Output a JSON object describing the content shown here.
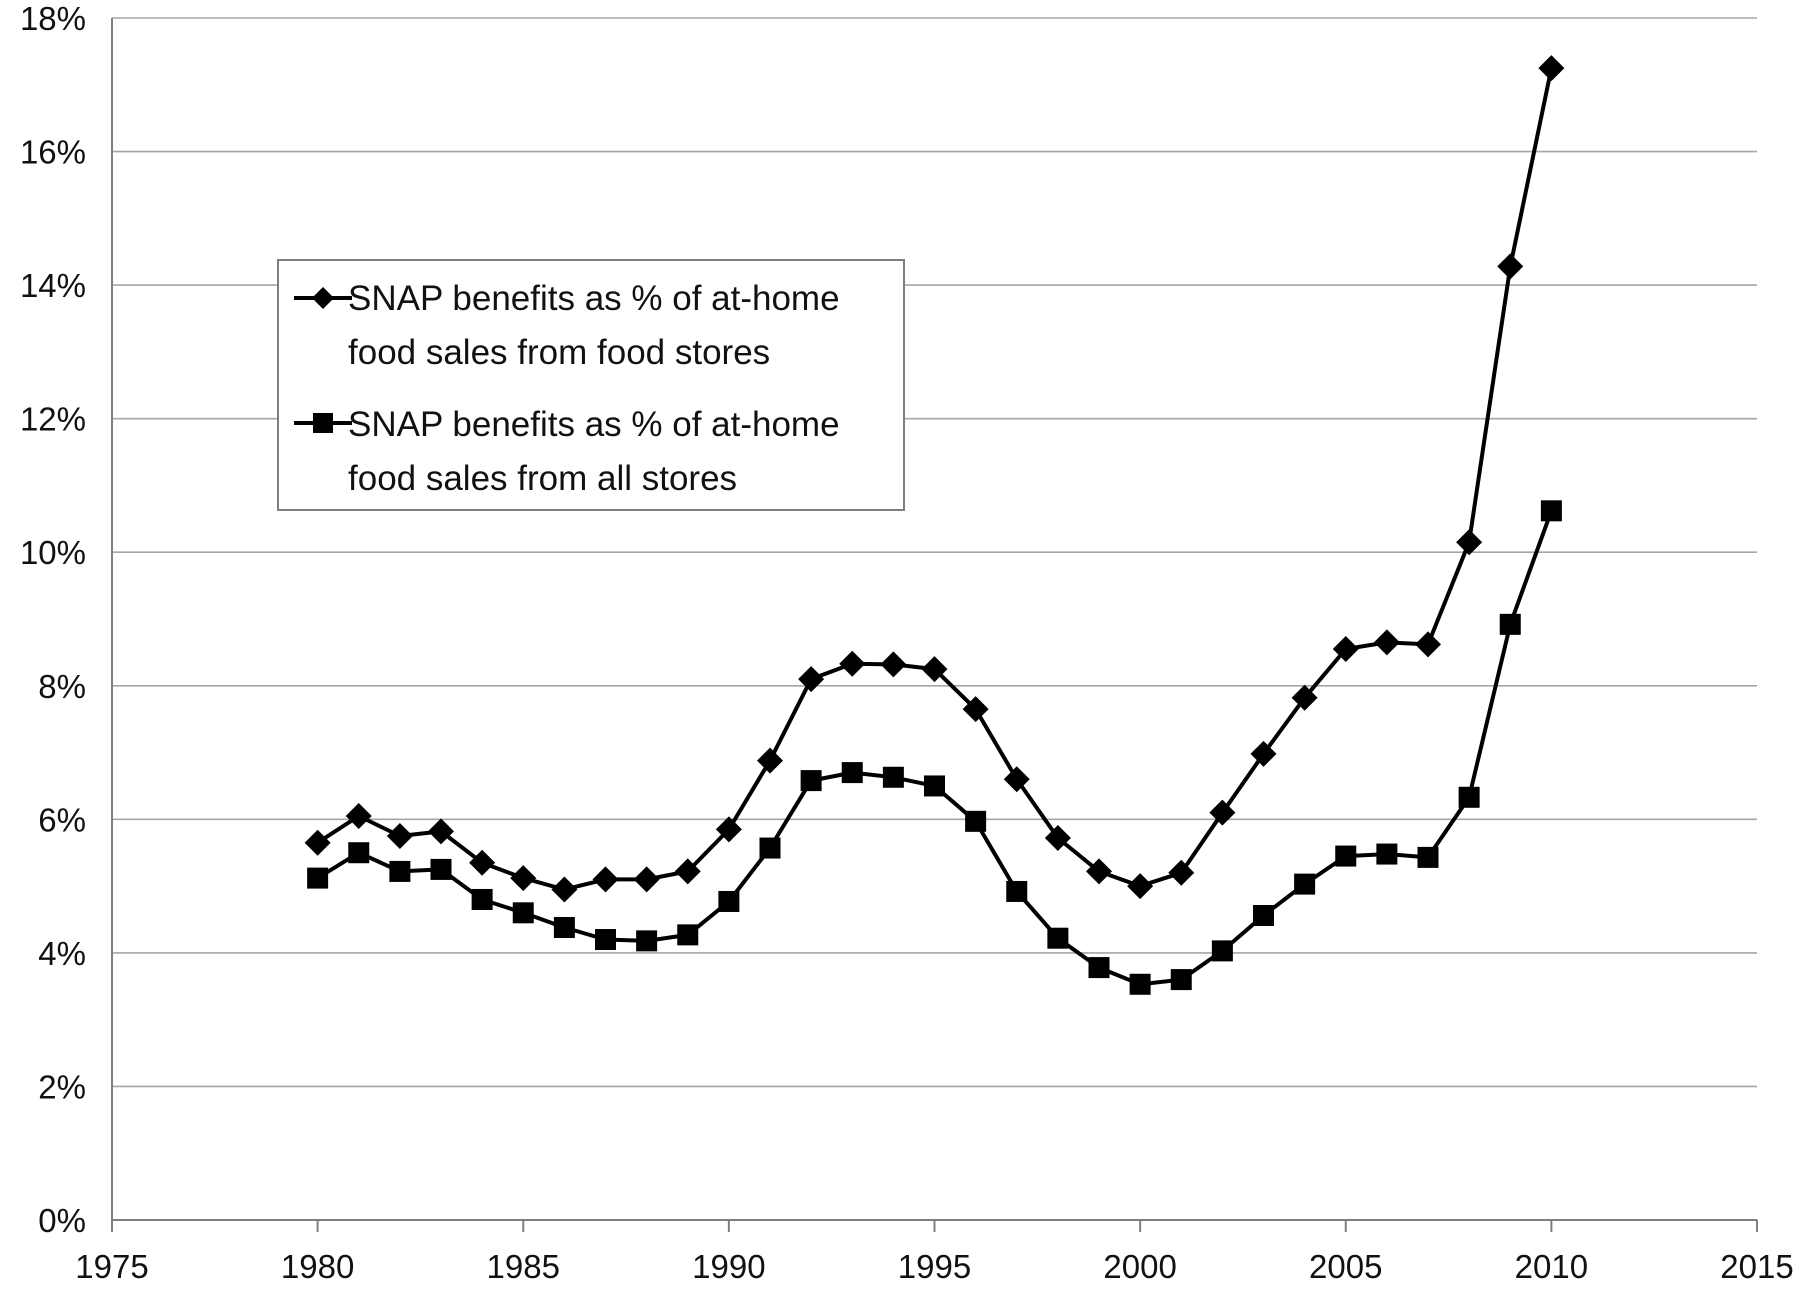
{
  "chart_data": {
    "type": "line",
    "title": "",
    "xlabel": "",
    "ylabel": "",
    "xlim": [
      1975,
      2015
    ],
    "ylim": [
      0,
      18
    ],
    "x_ticks": [
      1975,
      1980,
      1985,
      1990,
      1995,
      2000,
      2005,
      2010,
      2015
    ],
    "x_tick_labels": [
      "1975",
      "1980",
      "1985",
      "1990",
      "1995",
      "2000",
      "2005",
      "2010",
      "2015"
    ],
    "y_ticks": [
      0,
      2,
      4,
      6,
      8,
      10,
      12,
      14,
      16,
      18
    ],
    "y_tick_labels": [
      "0%",
      "2%",
      "4%",
      "6%",
      "8%",
      "10%",
      "12%",
      "14%",
      "16%",
      "18%"
    ],
    "grid": "horizontal",
    "legend_position": "upper-left",
    "x": [
      1980,
      1981,
      1982,
      1983,
      1984,
      1985,
      1986,
      1987,
      1988,
      1989,
      1990,
      1991,
      1992,
      1993,
      1994,
      1995,
      1996,
      1997,
      1998,
      1999,
      2000,
      2001,
      2002,
      2003,
      2004,
      2005,
      2006,
      2007,
      2008,
      2009,
      2010
    ],
    "series": [
      {
        "name": "SNAP benefits as % of at-home food sales from food stores",
        "legend_lines": [
          "SNAP benefits as % of at-home",
          "food sales from food stores"
        ],
        "marker": "diamond",
        "color": "#000000",
        "values": [
          5.65,
          6.05,
          5.75,
          5.82,
          5.35,
          5.12,
          4.95,
          5.1,
          5.1,
          5.22,
          5.85,
          6.88,
          8.1,
          8.33,
          8.32,
          8.25,
          7.65,
          6.6,
          5.72,
          5.22,
          5.0,
          5.2,
          6.1,
          6.98,
          7.82,
          8.55,
          8.65,
          8.62,
          10.15,
          14.28,
          17.25
        ]
      },
      {
        "name": "SNAP benefits as % of at-home food sales from all stores",
        "legend_lines": [
          "SNAP benefits as % of at-home",
          "food sales from all stores"
        ],
        "marker": "square",
        "color": "#000000",
        "values": [
          5.12,
          5.5,
          5.22,
          5.25,
          4.8,
          4.6,
          4.38,
          4.2,
          4.18,
          4.27,
          4.77,
          5.57,
          6.58,
          6.7,
          6.63,
          6.5,
          5.97,
          4.92,
          4.22,
          3.78,
          3.53,
          3.6,
          4.03,
          4.56,
          5.03,
          5.45,
          5.48,
          5.43,
          6.33,
          8.92,
          10.62
        ]
      }
    ]
  }
}
